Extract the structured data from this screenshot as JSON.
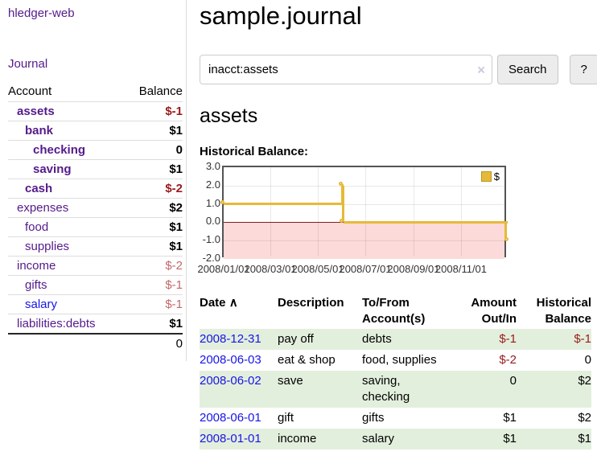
{
  "app": {
    "brand": "hledger-web",
    "nav_journal": "Journal"
  },
  "colors": {
    "link_visited": "#551a8b",
    "link_unvisited": "#1715e6",
    "negative_strong": "#9a1b1b",
    "negative_muted": "#c4686b",
    "row_stripe_green": "#e3efdd",
    "series_gold": "#e6ba38"
  },
  "sidebar": {
    "header": {
      "account": "Account",
      "balance": "Balance"
    },
    "accounts": [
      {
        "name": "assets",
        "indent": 1,
        "balance": "$-1",
        "bold": true,
        "link_style": "visited",
        "balance_style": "neg-strong"
      },
      {
        "name": "bank",
        "indent": 2,
        "balance": "$1",
        "bold": true,
        "link_style": "visited",
        "balance_style": "pos-strong"
      },
      {
        "name": "checking",
        "indent": 3,
        "balance": "0",
        "bold": true,
        "link_style": "visited",
        "balance_style": "pos-strong"
      },
      {
        "name": "saving",
        "indent": 3,
        "balance": "$1",
        "bold": true,
        "link_style": "visited",
        "balance_style": "pos-strong"
      },
      {
        "name": "cash",
        "indent": 2,
        "balance": "$-2",
        "bold": true,
        "link_style": "visited",
        "balance_style": "neg-strong"
      },
      {
        "name": "expenses",
        "indent": 1,
        "balance": "$2",
        "bold": false,
        "link_style": "visited",
        "balance_style": "pos-strong"
      },
      {
        "name": "food",
        "indent": 2,
        "balance": "$1",
        "bold": false,
        "link_style": "visited",
        "balance_style": "pos-strong"
      },
      {
        "name": "supplies",
        "indent": 2,
        "balance": "$1",
        "bold": false,
        "link_style": "visited",
        "balance_style": "pos-strong"
      },
      {
        "name": "income",
        "indent": 1,
        "balance": "$-2",
        "bold": false,
        "link_style": "visited",
        "balance_style": "neg-muted"
      },
      {
        "name": "gifts",
        "indent": 2,
        "balance": "$-1",
        "bold": false,
        "link_style": "visited",
        "balance_style": "neg-muted"
      },
      {
        "name": "salary",
        "indent": 2,
        "balance": "$-1",
        "bold": false,
        "link_style": "unvisited",
        "balance_style": "neg-muted"
      },
      {
        "name": "liabilities:debts",
        "indent": 1,
        "balance": "$1",
        "bold": false,
        "link_style": "visited",
        "balance_style": "pos-strong"
      }
    ],
    "total": "0"
  },
  "main": {
    "title": "sample.journal",
    "search": {
      "value": "inacct:assets",
      "clear": "×",
      "button": "Search",
      "help": "?"
    },
    "account_heading": "assets",
    "chart_heading": "Historical Balance:"
  },
  "chart_data": {
    "type": "line",
    "step": true,
    "title": "Historical Balance:",
    "series": [
      {
        "name": "$",
        "color": "#e6ba38",
        "points": [
          [
            "2008-01-01",
            1
          ],
          [
            "2008-06-01",
            2
          ],
          [
            "2008-06-03",
            0
          ],
          [
            "2008-12-31",
            -1
          ]
        ]
      }
    ],
    "x_range": [
      "2008-01-01",
      "2008-12-31"
    ],
    "ylim": [
      -2,
      3
    ],
    "y_ticks": [
      {
        "value": 3,
        "label": "3.0"
      },
      {
        "value": 2,
        "label": "2.0"
      },
      {
        "value": 1,
        "label": "1.0"
      },
      {
        "value": 0,
        "label": "0.0"
      },
      {
        "value": -1,
        "label": "-1.0"
      },
      {
        "value": -2,
        "label": "-2.0"
      }
    ],
    "x_ticks": [
      {
        "date": "2008-01-01",
        "label": "2008/01/01"
      },
      {
        "date": "2008-03-01",
        "label": "2008/03/01"
      },
      {
        "date": "2008-05-01",
        "label": "2008/05/01"
      },
      {
        "date": "2008-07-01",
        "label": "2008/07/01"
      },
      {
        "date": "2008-09-01",
        "label": "2008/09/01"
      },
      {
        "date": "2008-11-01",
        "label": "2008/11/01"
      }
    ],
    "grid": true,
    "negative_fill": "#fcdada",
    "zero_line_color": "#8c1a1a",
    "legend": {
      "label": "$",
      "position": "top-right"
    }
  },
  "register": {
    "columns": {
      "date": "Date",
      "sort_indicator": "∧",
      "description": "Description",
      "accounts": "To/From Account(s)",
      "amount": "Amount Out/In",
      "balance": "Historical Balance"
    },
    "rows": [
      {
        "date": "2008-12-31",
        "description": "pay off",
        "accounts": "debts",
        "amount": "$-1",
        "amount_neg": true,
        "balance": "$-1",
        "balance_neg": true
      },
      {
        "date": "2008-06-03",
        "description": "eat & shop",
        "accounts": "food, supplies",
        "amount": "$-2",
        "amount_neg": true,
        "balance": "0",
        "balance_neg": false
      },
      {
        "date": "2008-06-02",
        "description": "save",
        "accounts": "saving, checking",
        "amount": "0",
        "amount_neg": false,
        "balance": "$2",
        "balance_neg": false
      },
      {
        "date": "2008-06-01",
        "description": "gift",
        "accounts": "gifts",
        "amount": "$1",
        "amount_neg": false,
        "balance": "$2",
        "balance_neg": false
      },
      {
        "date": "2008-01-01",
        "description": "income",
        "accounts": "salary",
        "amount": "$1",
        "amount_neg": false,
        "balance": "$1",
        "balance_neg": false
      }
    ]
  }
}
